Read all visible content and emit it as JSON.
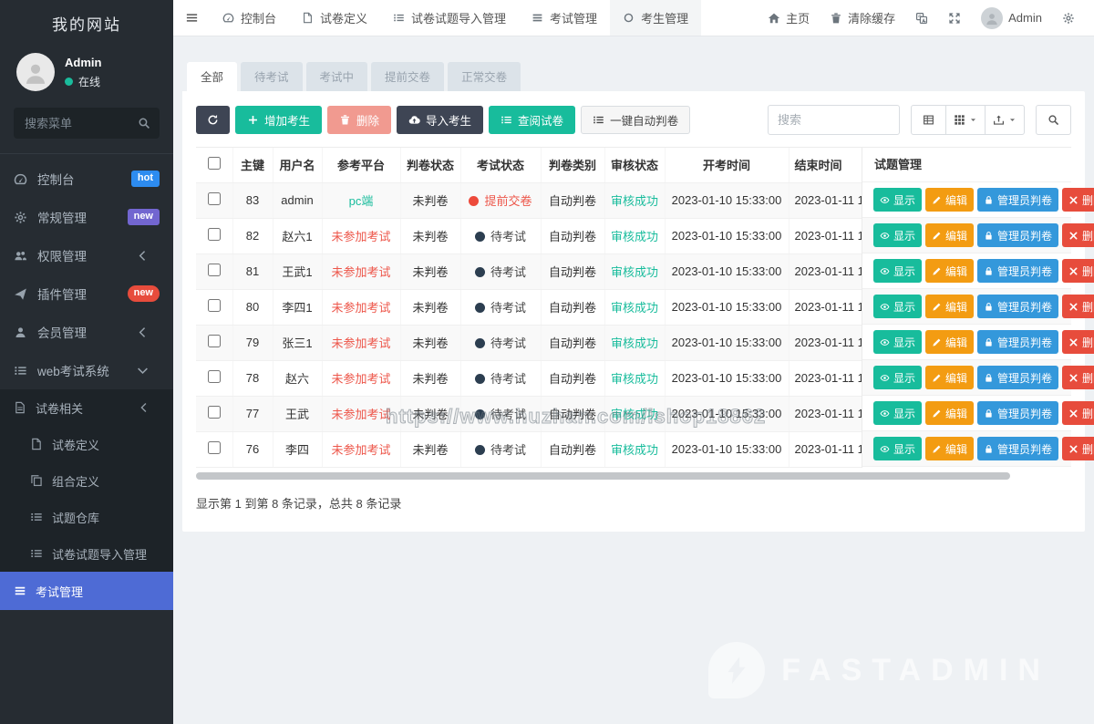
{
  "colors": {
    "green": "#18bc9c",
    "orange": "#f39c12",
    "blue": "#3498db",
    "red": "#e74c3c",
    "dark": "#3e4554",
    "danger_disabled": "#f19a90",
    "active_menu": "#4e6bd5",
    "badge_hot": "#2d8cf0",
    "badge_new_purple": "#7266d0",
    "badge_new_red": "#e74c3c"
  },
  "sidebar": {
    "site_title": "我的网站",
    "user_name": "Admin",
    "user_status": "在线",
    "search_placeholder": "搜索菜单",
    "menu": [
      {
        "label": "控制台",
        "icon": "dashboard",
        "badge": "hot",
        "badge_bg": "#2d8cf0",
        "badge_shape": "square"
      },
      {
        "label": "常规管理",
        "icon": "gear",
        "badge": "new",
        "badge_bg": "#7266d0",
        "badge_shape": "square"
      },
      {
        "label": "权限管理",
        "icon": "users",
        "chevron": "left"
      },
      {
        "label": "插件管理",
        "icon": "rocket",
        "badge": "new",
        "badge_bg": "#e74c3c",
        "badge_shape": "pill"
      },
      {
        "label": "会员管理",
        "icon": "user",
        "chevron": "left"
      },
      {
        "label": "web考试系统",
        "icon": "listdots",
        "chevron": "down"
      }
    ],
    "submenu": [
      {
        "label": "试卷相关",
        "icon": "filetext",
        "level": 1,
        "chevron": "left"
      },
      {
        "label": "试卷定义",
        "icon": "file",
        "level": 2
      },
      {
        "label": "组合定义",
        "icon": "copy",
        "level": 2
      },
      {
        "label": "试题仓库",
        "icon": "listdots",
        "level": 2
      },
      {
        "label": "试卷试题导入管理",
        "icon": "listdots",
        "level": 2
      },
      {
        "label": "考试管理",
        "icon": "bars",
        "level": 1,
        "active": true
      }
    ]
  },
  "topbar": {
    "tabs": [
      {
        "label": "控制台",
        "icon": "dashboard"
      },
      {
        "label": "试卷定义",
        "icon": "file"
      },
      {
        "label": "试卷试题导入管理",
        "icon": "listdots"
      },
      {
        "label": "考试管理",
        "icon": "bars"
      },
      {
        "label": "考生管理",
        "icon": "circle",
        "active": true
      }
    ],
    "home_label": "主页",
    "clear_cache_label": "清除缓存",
    "user_name": "Admin"
  },
  "filter_tabs": [
    {
      "label": "全部",
      "active": true
    },
    {
      "label": "待考试"
    },
    {
      "label": "考试中"
    },
    {
      "label": "提前交卷"
    },
    {
      "label": "正常交卷"
    }
  ],
  "toolbar": {
    "buttons": [
      {
        "name": "refresh",
        "label": "",
        "icon": "refresh",
        "bg": "#3e4554",
        "fg": "#ffffff"
      },
      {
        "name": "add",
        "label": "增加考生",
        "icon": "plus",
        "bg": "#18bc9c",
        "fg": "#ffffff"
      },
      {
        "name": "delete",
        "label": "删除",
        "icon": "trash",
        "bg": "#f19a90",
        "fg": "#ffffff"
      },
      {
        "name": "import",
        "label": "导入考生",
        "icon": "cloudup",
        "bg": "#3e4554",
        "fg": "#ffffff"
      },
      {
        "name": "review",
        "label": "查阅试卷",
        "icon": "listdots",
        "bg": "#18bc9c",
        "fg": "#ffffff"
      },
      {
        "name": "autojudge",
        "label": "一键自动判卷",
        "icon": "listdots",
        "bg": "#f6f6f6",
        "fg": "#444444",
        "border": "#d9dde1"
      }
    ],
    "search_placeholder": "搜索"
  },
  "table": {
    "headers": [
      "主键",
      "用户名",
      "参考平台",
      "判卷状态",
      "考试状态",
      "判卷类别",
      "审核状态",
      "开考时间",
      "结束时间"
    ],
    "fixed_header": "试题管理",
    "rows": [
      {
        "id": "83",
        "user": "admin",
        "platform": "pc端",
        "platform_color": "#18bc9c",
        "judge": "未判卷",
        "exam": "提前交卷",
        "exam_color": "#ed564a",
        "dot_color": "#ed4a3b",
        "type": "自动判卷",
        "audit": "审核成功",
        "audit_color": "#18bc9c",
        "start": "2023-01-10 15:33:00",
        "end": "2023-01-11 1"
      },
      {
        "id": "82",
        "user": "赵六1",
        "platform": "未参加考试",
        "platform_color": "#ed564a",
        "judge": "未判卷",
        "exam": "待考试",
        "exam_color": "#444444",
        "dot_color": "#2c3e50",
        "type": "自动判卷",
        "audit": "审核成功",
        "audit_color": "#18bc9c",
        "start": "2023-01-10 15:33:00",
        "end": "2023-01-11 1"
      },
      {
        "id": "81",
        "user": "王武1",
        "platform": "未参加考试",
        "platform_color": "#ed564a",
        "judge": "未判卷",
        "exam": "待考试",
        "exam_color": "#444444",
        "dot_color": "#2c3e50",
        "type": "自动判卷",
        "audit": "审核成功",
        "audit_color": "#18bc9c",
        "start": "2023-01-10 15:33:00",
        "end": "2023-01-11 1"
      },
      {
        "id": "80",
        "user": "李四1",
        "platform": "未参加考试",
        "platform_color": "#ed564a",
        "judge": "未判卷",
        "exam": "待考试",
        "exam_color": "#444444",
        "dot_color": "#2c3e50",
        "type": "自动判卷",
        "audit": "审核成功",
        "audit_color": "#18bc9c",
        "start": "2023-01-10 15:33:00",
        "end": "2023-01-11 1"
      },
      {
        "id": "79",
        "user": "张三1",
        "platform": "未参加考试",
        "platform_color": "#ed564a",
        "judge": "未判卷",
        "exam": "待考试",
        "exam_color": "#444444",
        "dot_color": "#2c3e50",
        "type": "自动判卷",
        "audit": "审核成功",
        "audit_color": "#18bc9c",
        "start": "2023-01-10 15:33:00",
        "end": "2023-01-11 1"
      },
      {
        "id": "78",
        "user": "赵六",
        "platform": "未参加考试",
        "platform_color": "#ed564a",
        "judge": "未判卷",
        "exam": "待考试",
        "exam_color": "#444444",
        "dot_color": "#2c3e50",
        "type": "自动判卷",
        "audit": "审核成功",
        "audit_color": "#18bc9c",
        "start": "2023-01-10 15:33:00",
        "end": "2023-01-11 1"
      },
      {
        "id": "77",
        "user": "王武",
        "platform": "未参加考试",
        "platform_color": "#ed564a",
        "judge": "未判卷",
        "exam": "待考试",
        "exam_color": "#444444",
        "dot_color": "#2c3e50",
        "type": "自动判卷",
        "audit": "审核成功",
        "audit_color": "#18bc9c",
        "start": "2023-01-10 15:33:00",
        "end": "2023-01-11 1"
      },
      {
        "id": "76",
        "user": "李四",
        "platform": "未参加考试",
        "platform_color": "#ed564a",
        "judge": "未判卷",
        "exam": "待考试",
        "exam_color": "#444444",
        "dot_color": "#2c3e50",
        "type": "自动判卷",
        "audit": "审核成功",
        "audit_color": "#18bc9c",
        "start": "2023-01-10 15:33:00",
        "end": "2023-01-11 1"
      }
    ],
    "row_actions": [
      {
        "label": "显示",
        "icon": "eye",
        "bg": "#18bc9c"
      },
      {
        "label": "编辑",
        "icon": "pencil",
        "bg": "#f39c12"
      },
      {
        "label": "管理员判卷",
        "icon": "lock",
        "bg": "#3498db"
      },
      {
        "label": "删除",
        "icon": "xmark",
        "bg": "#e74c3c"
      }
    ]
  },
  "footer": {
    "records_info": "显示第 1 到第 8 条记录，总共 8 条记录"
  },
  "watermark": {
    "table_text": "https://www.huzhan.com/ishop18862",
    "brand_text": "FASTADMIN"
  }
}
